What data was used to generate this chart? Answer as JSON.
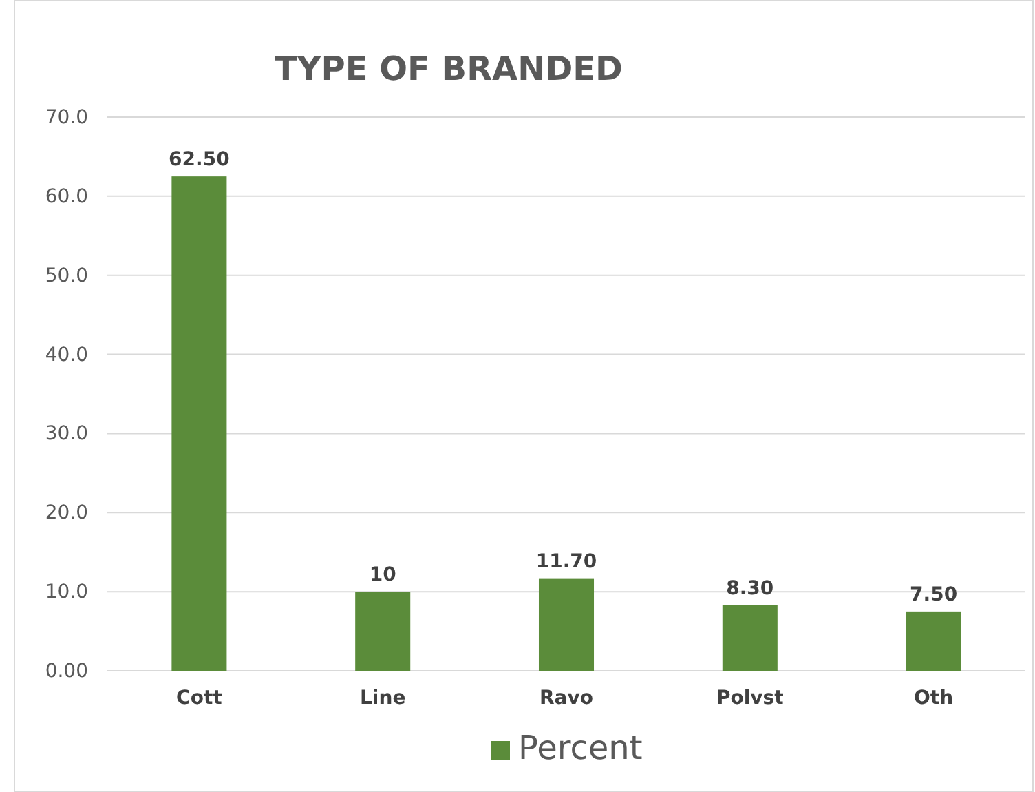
{
  "chart_data": {
    "type": "bar",
    "title": "TYPE OF BRANDED",
    "categories": [
      "Cott",
      "Line",
      "Ravo",
      "Polvst",
      "Oth"
    ],
    "series": [
      {
        "name": "Percent",
        "color": "#5b8c3a",
        "values": [
          62.5,
          10,
          11.7,
          8.3,
          7.5
        ],
        "value_labels": [
          "62.50",
          "10",
          "11.70",
          "8.30",
          "7.50"
        ]
      }
    ],
    "ylim": [
      0,
      70
    ],
    "yticks": [
      {
        "value": 0,
        "label": "0.00"
      },
      {
        "value": 10,
        "label": "10.0"
      },
      {
        "value": 20,
        "label": "20.0"
      },
      {
        "value": 30,
        "label": "30.0"
      },
      {
        "value": 40,
        "label": "40.0"
      },
      {
        "value": 50,
        "label": "50.0"
      },
      {
        "value": 60,
        "label": "60.0"
      },
      {
        "value": 70,
        "label": "70.0"
      }
    ],
    "grid": "y",
    "legend": "bottom"
  }
}
